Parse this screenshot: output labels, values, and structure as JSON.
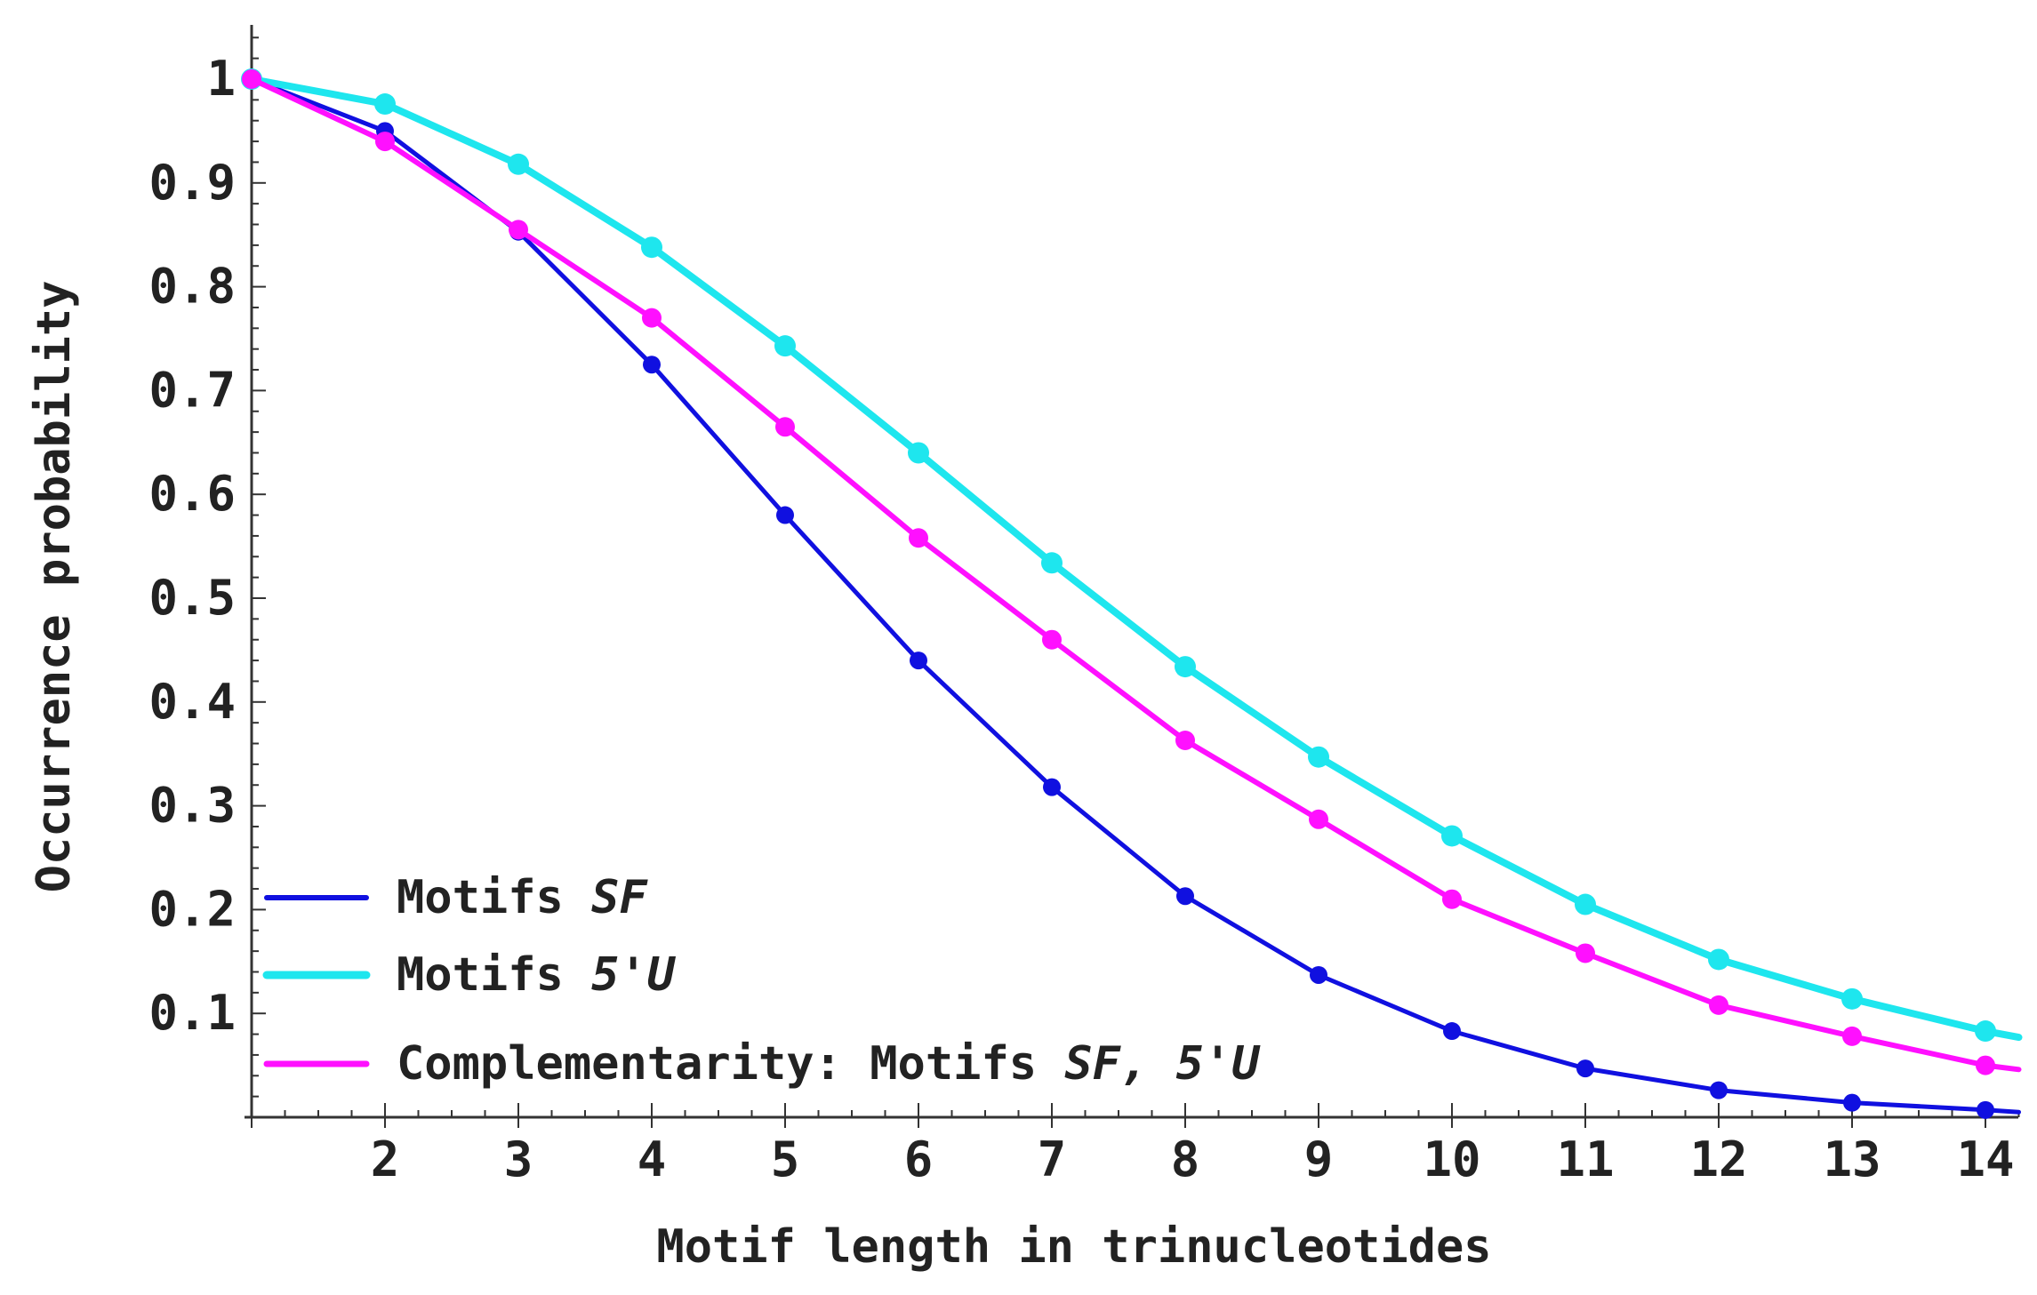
{
  "chart_data": {
    "type": "line",
    "title": "",
    "xlabel": "Motif length in trinucleotides",
    "ylabel": "Occurrence probability",
    "xlim": [
      1,
      14.25
    ],
    "ylim": [
      0,
      1.05
    ],
    "x_ticks": [
      "2",
      "3",
      "4",
      "5",
      "6",
      "7",
      "8",
      "9",
      "10",
      "11",
      "12",
      "13",
      "14"
    ],
    "y_ticks": [
      "0.1",
      "0.2",
      "0.3",
      "0.4",
      "0.5",
      "0.6",
      "0.7",
      "0.8",
      "0.9",
      "1"
    ],
    "grid": false,
    "legend_position": "bottom-left",
    "x": [
      1,
      2,
      3,
      4,
      5,
      6,
      7,
      8,
      9,
      10,
      11,
      12,
      13,
      14
    ],
    "series": [
      {
        "name": "Motifs SF",
        "legend_plain": "Motifs ",
        "legend_italic": "SF",
        "color": "#1010e0",
        "values": [
          1.0,
          0.95,
          0.853,
          0.725,
          0.58,
          0.44,
          0.318,
          0.213,
          0.137,
          0.083,
          0.047,
          0.026,
          0.014,
          0.007
        ],
        "extend_to": 0.005
      },
      {
        "name": "Motifs 5'U",
        "legend_plain": "Motifs ",
        "legend_italic": "5'U",
        "color": "#1ee6ee",
        "values": [
          1.0,
          0.976,
          0.918,
          0.838,
          0.743,
          0.64,
          0.534,
          0.434,
          0.347,
          0.271,
          0.205,
          0.152,
          0.114,
          0.083
        ],
        "extend_to": 0.077
      },
      {
        "name": "Complementarity: Motifs SF, 5'U",
        "legend_plain": "Complementarity: Motifs ",
        "legend_italic": "SF, 5'U",
        "color": "#ff10ff",
        "values": [
          1.0,
          0.94,
          0.855,
          0.77,
          0.665,
          0.558,
          0.46,
          0.363,
          0.287,
          0.21,
          0.158,
          0.108,
          0.078,
          0.05
        ],
        "extend_to": 0.046
      }
    ]
  }
}
